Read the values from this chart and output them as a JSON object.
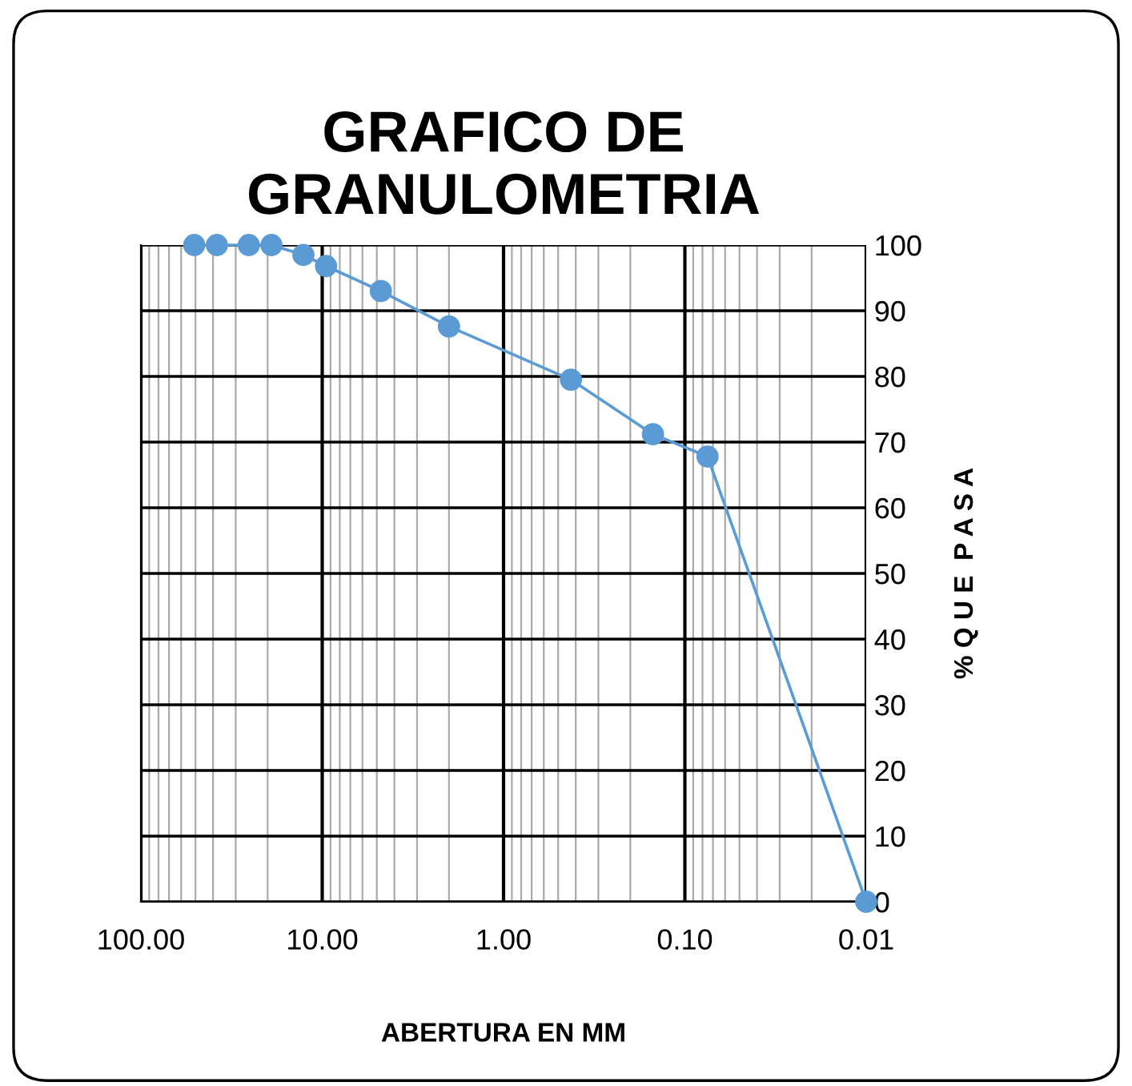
{
  "chart_data": {
    "type": "line",
    "title": "GRAFICO DE\nGRANULOMETRIA",
    "xlabel": "ABERTURA EN MM",
    "ylabel": "% Q U E  P A S A",
    "x": [
      50.8,
      38.1,
      25.4,
      19.05,
      12.7,
      9.525,
      4.75,
      2.0,
      0.425,
      0.15,
      0.075,
      0.01
    ],
    "series": [
      {
        "color": "#5b9bd5",
        "values": [
          100,
          100,
          100,
          100,
          98.5,
          96.8,
          93,
          87.6,
          79.5,
          71.2,
          67.8,
          0
        ]
      }
    ],
    "log": "x",
    "xlim": [
      100,
      0.01
    ],
    "xticks": [
      {
        "value": 100,
        "label": "100.00"
      },
      {
        "value": 10,
        "label": "10.00"
      },
      {
        "value": 1,
        "label": "1.00"
      },
      {
        "value": 0.1,
        "label": "0.10"
      },
      {
        "value": 0.01,
        "label": "0.01"
      }
    ],
    "ylim": [
      0,
      100
    ],
    "yticks": [
      0,
      10,
      20,
      30,
      40,
      50,
      60,
      70,
      80,
      90,
      100
    ],
    "grid": true,
    "marker": "circle",
    "line_style": "solid"
  }
}
